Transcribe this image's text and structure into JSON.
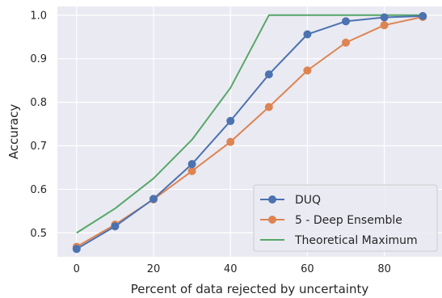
{
  "chart_data": {
    "type": "line",
    "xlabel": "Percent of data rejected by uncertainty",
    "ylabel": "Accuracy",
    "xlim": [
      -5,
      95
    ],
    "ylim": [
      0.445,
      1.02
    ],
    "xticks": [
      0,
      20,
      40,
      60,
      80
    ],
    "yticks": [
      0.5,
      0.6,
      0.7,
      0.8,
      0.9,
      1.0
    ],
    "xtick_labels": [
      "0",
      "20",
      "40",
      "60",
      "80"
    ],
    "ytick_labels": [
      "0.5",
      "0.6",
      "0.7",
      "0.8",
      "0.9",
      "1.0"
    ],
    "grid": true,
    "legend_position": "bottom-right",
    "series": [
      {
        "name": "DUQ",
        "color": "#4c72b0",
        "markers": true,
        "x": [
          0,
          10,
          20,
          30,
          40,
          50,
          60,
          70,
          80,
          90
        ],
        "y": [
          0.463,
          0.515,
          0.578,
          0.658,
          0.757,
          0.864,
          0.956,
          0.986,
          0.995,
          0.998
        ]
      },
      {
        "name": "5 - Deep Ensemble",
        "color": "#dd8452",
        "markers": true,
        "x": [
          0,
          10,
          20,
          30,
          40,
          50,
          60,
          70,
          80,
          90
        ],
        "y": [
          0.468,
          0.519,
          0.577,
          0.642,
          0.709,
          0.789,
          0.873,
          0.937,
          0.977,
          0.996
        ]
      },
      {
        "name": "Theoretical Maximum",
        "color": "#55a868",
        "markers": false,
        "x": [
          0,
          10,
          20,
          30,
          40,
          50,
          60,
          70,
          80,
          90
        ],
        "y": [
          0.5,
          0.556,
          0.625,
          0.714,
          0.833,
          1.0,
          1.0,
          1.0,
          1.0,
          1.0
        ]
      }
    ]
  },
  "colors": {
    "plot_background": "#eaeaf2",
    "grid": "#ffffff",
    "text": "#262626"
  }
}
